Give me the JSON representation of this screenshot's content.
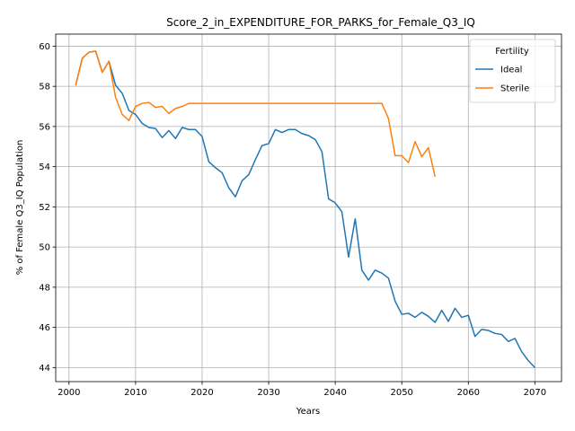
{
  "chart_data": {
    "type": "line",
    "title": "Score_2_in_EXPENDITURE_FOR_PARKS_for_Female_Q3_IQ",
    "xlabel": "Years",
    "ylabel": "% of Female Q3_IQ Population",
    "xlim": [
      1998,
      2074
    ],
    "ylim": [
      43.3,
      60.6
    ],
    "xticks": [
      2000,
      2010,
      2020,
      2030,
      2040,
      2050,
      2060,
      2070
    ],
    "yticks": [
      44,
      46,
      48,
      50,
      52,
      54,
      56,
      58,
      60
    ],
    "grid": true,
    "legend": {
      "title": "Fertility",
      "placement": "top-right"
    },
    "series": [
      {
        "name": "Ideal",
        "color": "#1f77b4",
        "x": [
          2001,
          2002,
          2003,
          2004,
          2005,
          2006,
          2007,
          2008,
          2009,
          2010,
          2011,
          2012,
          2013,
          2014,
          2015,
          2016,
          2017,
          2018,
          2019,
          2020,
          2021,
          2022,
          2023,
          2024,
          2025,
          2026,
          2027,
          2028,
          2029,
          2030,
          2031,
          2032,
          2033,
          2034,
          2035,
          2036,
          2037,
          2038,
          2039,
          2040,
          2041,
          2042,
          2043,
          2044,
          2045,
          2046,
          2047,
          2048,
          2049,
          2050,
          2051,
          2052,
          2053,
          2054,
          2055,
          2056,
          2057,
          2058,
          2059,
          2060,
          2061,
          2062,
          2063,
          2064,
          2065,
          2066,
          2067,
          2068,
          2069,
          2070
        ],
        "values": [
          58.05,
          59.4,
          59.7,
          59.75,
          58.7,
          59.25,
          58.05,
          57.65,
          56.8,
          56.6,
          56.15,
          55.95,
          55.9,
          55.45,
          55.8,
          55.4,
          55.95,
          55.85,
          55.85,
          55.5,
          54.25,
          53.95,
          53.7,
          52.95,
          52.5,
          53.3,
          53.6,
          54.35,
          55.05,
          55.15,
          55.85,
          55.7,
          55.85,
          55.85,
          55.65,
          55.55,
          55.35,
          54.75,
          52.4,
          52.2,
          51.75,
          49.5,
          51.4,
          48.85,
          48.35,
          48.85,
          48.7,
          48.45,
          47.3,
          46.65,
          46.7,
          46.5,
          46.75,
          46.55,
          46.25,
          46.85,
          46.3,
          46.95,
          46.5,
          46.6,
          45.55,
          45.9,
          45.85,
          45.7,
          45.65,
          45.3,
          45.45,
          44.8,
          44.35,
          44.0
        ]
      },
      {
        "name": "Sterile",
        "color": "#ff7f0e",
        "x": [
          2001,
          2002,
          2003,
          2004,
          2005,
          2006,
          2007,
          2008,
          2009,
          2010,
          2011,
          2012,
          2013,
          2014,
          2015,
          2016,
          2017,
          2018,
          2019,
          2020,
          2021,
          2022,
          2023,
          2024,
          2025,
          2026,
          2027,
          2028,
          2029,
          2030,
          2031,
          2032,
          2033,
          2034,
          2035,
          2036,
          2037,
          2038,
          2039,
          2040,
          2041,
          2042,
          2043,
          2044,
          2045,
          2046,
          2047,
          2048,
          2049,
          2050,
          2051,
          2052,
          2053,
          2054,
          2055
        ],
        "values": [
          58.05,
          59.4,
          59.7,
          59.75,
          58.7,
          59.25,
          57.45,
          56.6,
          56.3,
          57.0,
          57.15,
          57.2,
          56.95,
          57.0,
          56.65,
          56.9,
          57.0,
          57.15,
          57.15,
          57.15,
          57.15,
          57.15,
          57.15,
          57.15,
          57.15,
          57.15,
          57.15,
          57.15,
          57.15,
          57.15,
          57.15,
          57.15,
          57.15,
          57.15,
          57.15,
          57.15,
          57.15,
          57.15,
          57.15,
          57.15,
          57.15,
          57.15,
          57.15,
          57.15,
          57.15,
          57.15,
          57.15,
          56.4,
          54.55,
          54.55,
          54.2,
          55.25,
          54.5,
          54.95,
          53.5
        ]
      }
    ]
  }
}
